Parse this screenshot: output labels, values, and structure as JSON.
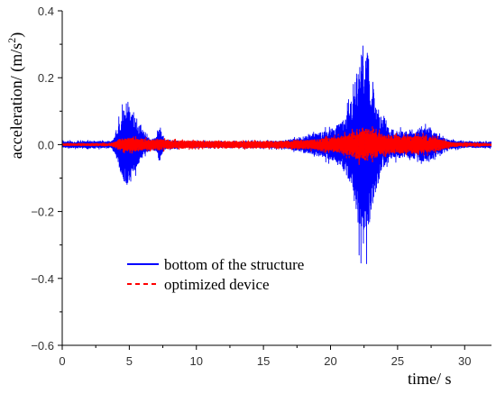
{
  "chart_data": {
    "type": "line",
    "xlabel": "time/ s",
    "ylabel": "acceleration/ (m/s²)",
    "ylabel_parts": {
      "main": "acceleration/ (m/s",
      "sup": "2",
      "end": ")"
    },
    "xlim": [
      0,
      32
    ],
    "ylim": [
      -0.6,
      0.4
    ],
    "x_ticks": [
      0,
      5,
      10,
      15,
      20,
      25,
      30
    ],
    "x_tick_labels": [
      "0",
      "5",
      "10",
      "15",
      "20",
      "25",
      "30"
    ],
    "y_ticks": [
      -0.6,
      -0.4,
      -0.2,
      0.0,
      0.2,
      0.4
    ],
    "y_tick_labels": [
      "−0.6",
      "−0.4",
      "−0.2",
      "0.0",
      "0.2",
      "0.4"
    ],
    "grid": false,
    "legend_position": "lower-center",
    "sample_step": 0.01,
    "series": [
      {
        "name": "bottom of the structure",
        "color": "#0000ff",
        "style": "solid",
        "envelope": [
          [
            0,
            0.012
          ],
          [
            3.7,
            0.014
          ],
          [
            4.1,
            0.06
          ],
          [
            4.4,
            0.12
          ],
          [
            4.8,
            0.17
          ],
          [
            5.1,
            0.14
          ],
          [
            5.5,
            0.09
          ],
          [
            6.0,
            0.05
          ],
          [
            6.6,
            0.02
          ],
          [
            7.0,
            0.03
          ],
          [
            7.3,
            0.07
          ],
          [
            7.6,
            0.02
          ],
          [
            9,
            0.013
          ],
          [
            12,
            0.012
          ],
          [
            15,
            0.013
          ],
          [
            16.5,
            0.015
          ],
          [
            17.5,
            0.025
          ],
          [
            18.5,
            0.04
          ],
          [
            19.5,
            0.05
          ],
          [
            20.3,
            0.07
          ],
          [
            21.0,
            0.1
          ],
          [
            21.6,
            0.18
          ],
          [
            22.0,
            0.3
          ],
          [
            22.4,
            0.4
          ],
          [
            22.8,
            0.36
          ],
          [
            23.2,
            0.22
          ],
          [
            23.8,
            0.1
          ],
          [
            24.5,
            0.06
          ],
          [
            25.5,
            0.05
          ],
          [
            26.5,
            0.06
          ],
          [
            27.3,
            0.07
          ],
          [
            28.0,
            0.04
          ],
          [
            28.6,
            0.02
          ],
          [
            30,
            0.012
          ],
          [
            32,
            0.012
          ]
        ]
      },
      {
        "name": "optimized device",
        "color": "#ff0000",
        "style": "dashed",
        "envelope": [
          [
            0,
            0.004
          ],
          [
            3.7,
            0.005
          ],
          [
            4.2,
            0.02
          ],
          [
            4.8,
            0.028
          ],
          [
            5.5,
            0.025
          ],
          [
            6.5,
            0.02
          ],
          [
            7.3,
            0.022
          ],
          [
            8.5,
            0.016
          ],
          [
            10,
            0.014
          ],
          [
            12,
            0.013
          ],
          [
            14,
            0.014
          ],
          [
            16,
            0.013
          ],
          [
            17.5,
            0.016
          ],
          [
            19,
            0.022
          ],
          [
            20.5,
            0.03
          ],
          [
            21.5,
            0.045
          ],
          [
            22.4,
            0.07
          ],
          [
            23.0,
            0.06
          ],
          [
            24,
            0.04
          ],
          [
            25.5,
            0.035
          ],
          [
            27,
            0.035
          ],
          [
            28.0,
            0.025
          ],
          [
            29,
            0.008
          ],
          [
            32,
            0.005
          ]
        ]
      }
    ]
  }
}
